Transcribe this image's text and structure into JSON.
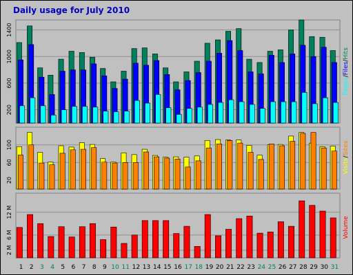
{
  "title": "Daily usage for July 2010",
  "colors": {
    "title": "#0000c0",
    "hits": "#00805c",
    "files": "#0000ff",
    "pages": "#00ffff",
    "visits": "#ffff00",
    "sites": "#ff8000",
    "volume": "#ff0000",
    "weekend_day": "#00805c",
    "weekday": "#000000",
    "panel_bg": "#c0c0c0"
  },
  "chart_data": [
    {
      "type": "bar",
      "panel": "hits_files_pages",
      "categories": [
        "1",
        "2",
        "3",
        "4",
        "5",
        "6",
        "7",
        "8",
        "9",
        "10",
        "11",
        "12",
        "13",
        "14",
        "15",
        "16",
        "17",
        "18",
        "19",
        "20",
        "21",
        "22",
        "23",
        "24",
        "25",
        "26",
        "27",
        "28",
        "29",
        "30",
        "31"
      ],
      "weekend_days": [
        "3",
        "4",
        "10",
        "11",
        "17",
        "18",
        "24",
        "25",
        "31"
      ],
      "ylim": [
        0,
        1550
      ],
      "yticks": [
        "200",
        "600",
        "1000",
        "1400"
      ],
      "ytick_values": [
        200,
        600,
        1000,
        1400
      ],
      "legend": [
        {
          "label": "Pages",
          "color_key": "pages"
        },
        {
          "label": "Files",
          "color_key": "files"
        },
        {
          "label": "Hits",
          "color_key": "hits"
        }
      ],
      "legend_separator": "/",
      "series": [
        {
          "name": "Hits",
          "values": [
            1210,
            1460,
            830,
            720,
            960,
            1080,
            1060,
            990,
            820,
            620,
            780,
            1120,
            1130,
            1040,
            830,
            620,
            770,
            930,
            1200,
            1250,
            1380,
            1420,
            960,
            910,
            1080,
            1100,
            1400,
            1550,
            1300,
            1290,
            1090
          ]
        },
        {
          "name": "Files",
          "values": [
            950,
            1180,
            690,
            430,
            780,
            800,
            800,
            890,
            710,
            520,
            660,
            900,
            870,
            940,
            730,
            500,
            640,
            760,
            930,
            1050,
            1240,
            1090,
            770,
            740,
            1020,
            910,
            1040,
            1170,
            1000,
            1140,
            910
          ]
        },
        {
          "name": "Pages",
          "values": [
            260,
            380,
            260,
            120,
            200,
            250,
            250,
            240,
            180,
            170,
            180,
            340,
            300,
            430,
            230,
            130,
            220,
            240,
            280,
            310,
            350,
            320,
            280,
            220,
            320,
            320,
            320,
            460,
            290,
            380,
            310
          ]
        }
      ]
    },
    {
      "type": "bar",
      "panel": "visits_sites",
      "categories": [
        "1",
        "2",
        "3",
        "4",
        "5",
        "6",
        "7",
        "8",
        "9",
        "10",
        "11",
        "12",
        "13",
        "14",
        "15",
        "16",
        "17",
        "18",
        "19",
        "20",
        "21",
        "22",
        "23",
        "24",
        "25",
        "26",
        "27",
        "28",
        "29",
        "30",
        "31"
      ],
      "ylim": [
        0,
        140
      ],
      "yticks": [
        "20",
        "60",
        "100"
      ],
      "ytick_values": [
        20,
        60,
        100
      ],
      "legend": [
        {
          "label": "Visits",
          "color_key": "visits"
        },
        {
          "label": "Sites",
          "color_key": "sites"
        }
      ],
      "legend_separator": "/",
      "series": [
        {
          "name": "Visits",
          "values": [
            96,
            128,
            83,
            61,
            98,
            95,
            105,
            101,
            69,
            61,
            82,
            78,
            90,
            76,
            72,
            73,
            72,
            75,
            110,
            112,
            111,
            111,
            99,
            77,
            100,
            101,
            120,
            128,
            104,
            96,
            97
          ]
        },
        {
          "name": "Sites",
          "values": [
            77,
            100,
            59,
            55,
            81,
            89,
            90,
            94,
            61,
            59,
            60,
            60,
            84,
            73,
            70,
            68,
            50,
            64,
            93,
            102,
            110,
            104,
            83,
            67,
            102,
            98,
            108,
            126,
            128,
            93,
            86
          ]
        }
      ]
    },
    {
      "type": "bar",
      "panel": "volume",
      "categories": [
        "1",
        "2",
        "3",
        "4",
        "5",
        "6",
        "7",
        "8",
        "9",
        "10",
        "11",
        "12",
        "13",
        "14",
        "15",
        "16",
        "17",
        "18",
        "19",
        "20",
        "21",
        "22",
        "23",
        "24",
        "25",
        "26",
        "27",
        "28",
        "29",
        "30",
        "31"
      ],
      "ylim": [
        0,
        17
      ],
      "yticks": [
        "2 M",
        "6 M",
        "12 M"
      ],
      "ytick_values": [
        2,
        6,
        12
      ],
      "legend": [
        {
          "label": "Volume",
          "color_key": "volume"
        }
      ],
      "series": [
        {
          "name": "Volume",
          "values": [
            8.0,
            11.4,
            9.0,
            5.6,
            8.2,
            5.5,
            8.2,
            9.0,
            4.8,
            8.1,
            3.8,
            6.0,
            9.8,
            9.8,
            9.8,
            6.4,
            8.3,
            3.0,
            11.4,
            5.8,
            7.5,
            10.3,
            11.0,
            6.5,
            6.8,
            9.5,
            8.3,
            15.0,
            13.8,
            12.3,
            10.5
          ]
        }
      ]
    }
  ]
}
